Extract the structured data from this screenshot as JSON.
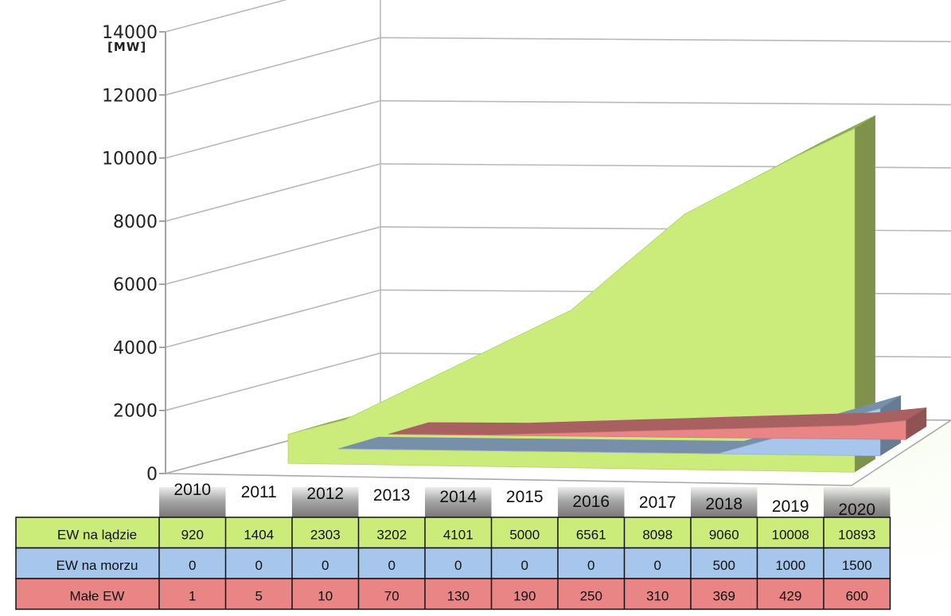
{
  "chart_data": {
    "type": "area",
    "title": "",
    "ylabel": "[MW]",
    "xlabel": "",
    "ylim": [
      0,
      14000
    ],
    "yticks": [
      "0",
      "2000",
      "4000",
      "6000",
      "8000",
      "10000",
      "12000",
      "14000"
    ],
    "categories": [
      "2010",
      "2011",
      "2012",
      "2013",
      "2014",
      "2015",
      "2016",
      "2017",
      "2018",
      "2019",
      "2020"
    ],
    "stacked": false,
    "grid": true,
    "three_d": true,
    "series": [
      {
        "name": "EW na lądzie",
        "color": "#cbeb7b",
        "values": [
          920,
          1404,
          2303,
          3202,
          4101,
          5000,
          6561,
          8098,
          9060,
          10008,
          10893
        ]
      },
      {
        "name": "EW na morzu",
        "color": "#a6c6ec",
        "values": [
          0,
          0,
          0,
          0,
          0,
          0,
          0,
          0,
          500,
          1000,
          1500
        ]
      },
      {
        "name": "Małe EW",
        "color": "#e98585",
        "values": [
          1,
          5,
          10,
          70,
          130,
          190,
          250,
          310,
          369,
          429,
          600
        ]
      }
    ]
  }
}
